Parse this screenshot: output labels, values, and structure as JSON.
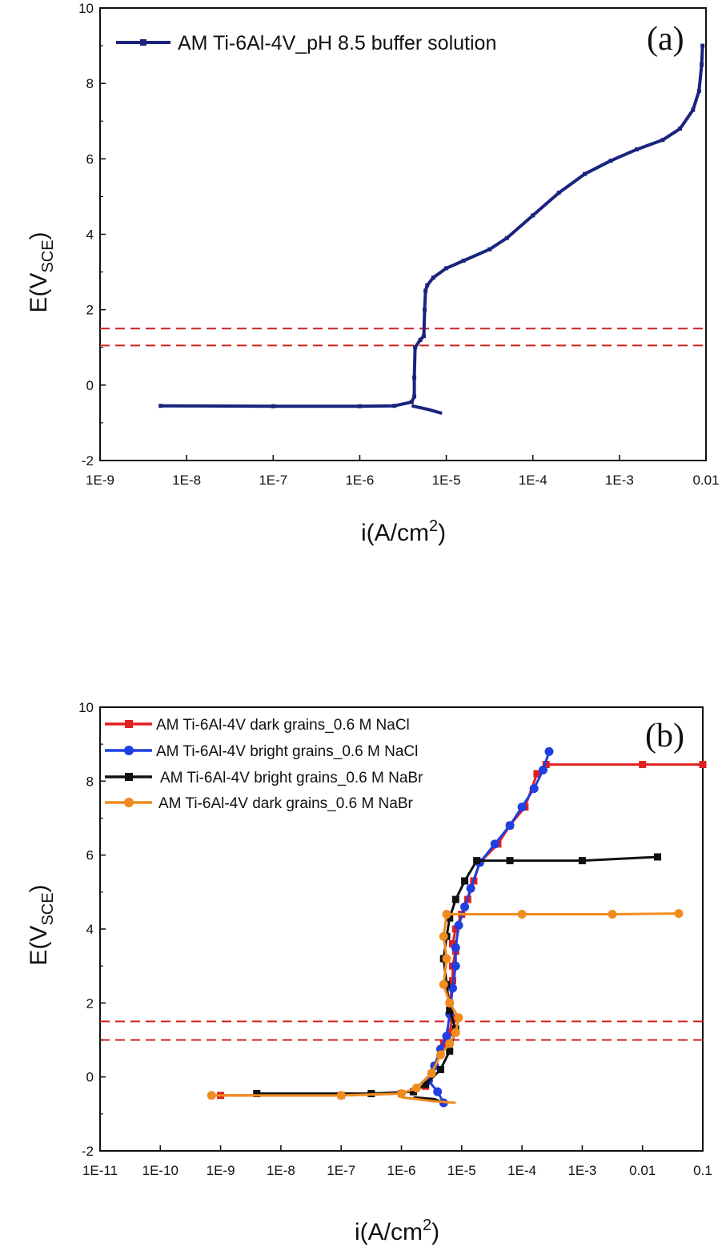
{
  "chart_data": [
    {
      "id": "a",
      "type": "line",
      "panel_label": "(a)",
      "xscale": "log",
      "xlim": [
        -9,
        -2
      ],
      "ylim": [
        -2,
        10
      ],
      "x_ticks": [
        {
          "exp": -9,
          "label": "1E-9"
        },
        {
          "exp": -8,
          "label": "1E-8"
        },
        {
          "exp": -7,
          "label": "1E-7"
        },
        {
          "exp": -6,
          "label": "1E-6"
        },
        {
          "exp": -5,
          "label": "1E-5"
        },
        {
          "exp": -4,
          "label": "1E-4"
        },
        {
          "exp": -3,
          "label": "1E-3"
        },
        {
          "exp": -2,
          "label": "0.01"
        }
      ],
      "y_ticks": [
        -2,
        0,
        2,
        4,
        6,
        8,
        10
      ],
      "xlabel": {
        "main": "i(A/cm",
        "sup": "2",
        "end": ")"
      },
      "ylabel": {
        "main": "E(V",
        "sub": "SCE",
        "end": ")"
      },
      "hlines": [
        1.5,
        1.05
      ],
      "hline_color": "#cc2222",
      "series": [
        {
          "name": "AM Ti-6Al-4V_pH 8.5 buffer solution",
          "color": "#1a237e",
          "marker": "square",
          "points": [
            [
              -8.3,
              -0.55
            ],
            [
              -7,
              -0.56
            ],
            [
              -6,
              -0.56
            ],
            [
              -5.6,
              -0.55
            ],
            [
              -5.4,
              -0.45
            ],
            [
              -5.37,
              -0.3
            ],
            [
              -5.37,
              0.2
            ],
            [
              -5.36,
              1.0
            ],
            [
              -5.3,
              1.2
            ],
            [
              -5.26,
              1.3
            ],
            [
              -5.25,
              2.0
            ],
            [
              -5.24,
              2.5
            ],
            [
              -5.22,
              2.65
            ],
            [
              -5.15,
              2.85
            ],
            [
              -5.0,
              3.1
            ],
            [
              -4.8,
              3.3
            ],
            [
              -4.5,
              3.6
            ],
            [
              -4.3,
              3.9
            ],
            [
              -4.0,
              4.5
            ],
            [
              -3.7,
              5.1
            ],
            [
              -3.4,
              5.6
            ],
            [
              -3.1,
              5.95
            ],
            [
              -2.8,
              6.25
            ],
            [
              -2.5,
              6.5
            ],
            [
              -2.3,
              6.8
            ],
            [
              -2.15,
              7.3
            ],
            [
              -2.08,
              7.8
            ],
            [
              -2.05,
              8.5
            ],
            [
              -2.04,
              9.0
            ]
          ],
          "cathodic_branch": [
            [
              -5.4,
              -0.55
            ],
            [
              -5.2,
              -0.65
            ],
            [
              -5.05,
              -0.75
            ]
          ]
        }
      ]
    },
    {
      "id": "b",
      "type": "line",
      "panel_label": "(b)",
      "xscale": "log",
      "xlim": [
        -11,
        -1
      ],
      "ylim": [
        -2,
        10
      ],
      "x_ticks": [
        {
          "exp": -11,
          "label": "1E-11"
        },
        {
          "exp": -10,
          "label": "1E-10"
        },
        {
          "exp": -9,
          "label": "1E-9"
        },
        {
          "exp": -8,
          "label": "1E-8"
        },
        {
          "exp": -7,
          "label": "1E-7"
        },
        {
          "exp": -6,
          "label": "1E-6"
        },
        {
          "exp": -5,
          "label": "1E-5"
        },
        {
          "exp": -4,
          "label": "1E-4"
        },
        {
          "exp": -3,
          "label": "1E-3"
        },
        {
          "exp": -2,
          "label": "0.01"
        },
        {
          "exp": -1,
          "label": "0.1"
        }
      ],
      "y_ticks": [
        -2,
        0,
        2,
        4,
        6,
        8,
        10
      ],
      "xlabel": {
        "main": "i(A/cm",
        "sup": "2",
        "end": ")"
      },
      "ylabel": {
        "main": "E(V",
        "sub": "SCE",
        "end": ")"
      },
      "hlines": [
        1.5,
        1.0
      ],
      "hline_color": "#cc2222",
      "series": [
        {
          "name": "AM Ti-6Al-4V dark grains_0.6 M NaCl",
          "color": "#e02020",
          "marker": "square",
          "points": [
            [
              -9,
              -0.5
            ],
            [
              -7,
              -0.5
            ],
            [
              -6,
              -0.45
            ],
            [
              -5.6,
              -0.25
            ],
            [
              -5.45,
              0.3
            ],
            [
              -5.3,
              0.9
            ],
            [
              -5.2,
              1.2
            ],
            [
              -5.15,
              1.6
            ],
            [
              -5.2,
              2.0
            ],
            [
              -5.15,
              2.6
            ],
            [
              -5.15,
              3.0
            ],
            [
              -5.1,
              3.4
            ],
            [
              -5.15,
              3.6
            ],
            [
              -5.1,
              4.0
            ],
            [
              -5.0,
              4.4
            ],
            [
              -4.9,
              4.8
            ],
            [
              -4.8,
              5.3
            ],
            [
              -4.7,
              5.8
            ],
            [
              -4.4,
              6.3
            ],
            [
              -4.2,
              6.8
            ],
            [
              -3.95,
              7.3
            ],
            [
              -3.75,
              8.2
            ],
            [
              -3.6,
              8.45
            ],
            [
              -2,
              8.45
            ],
            [
              -1,
              8.45
            ]
          ]
        },
        {
          "name": "AM Ti-6Al-4V bright grains_0.6 M NaCl",
          "color": "#1f3fe0",
          "marker": "circle",
          "points": [
            [
              -5.3,
              -0.7
            ],
            [
              -5.4,
              -0.4
            ],
            [
              -5.55,
              -0.1
            ],
            [
              -5.45,
              0.3
            ],
            [
              -5.35,
              0.75
            ],
            [
              -5.25,
              1.1
            ],
            [
              -5.2,
              1.7
            ],
            [
              -5.15,
              2.4
            ],
            [
              -5.1,
              3.0
            ],
            [
              -5.1,
              3.5
            ],
            [
              -5.05,
              4.1
            ],
            [
              -4.95,
              4.6
            ],
            [
              -4.85,
              5.1
            ],
            [
              -4.7,
              5.8
            ],
            [
              -4.45,
              6.3
            ],
            [
              -4.2,
              6.8
            ],
            [
              -4.0,
              7.3
            ],
            [
              -3.8,
              7.8
            ],
            [
              -3.65,
              8.3
            ],
            [
              -3.55,
              8.8
            ]
          ]
        },
        {
          "name": "AM Ti-6Al-4V bright grains_0.6 M NaBr",
          "color": "#111111",
          "marker": "square",
          "points": [
            [
              -8.4,
              -0.45
            ],
            [
              -6.5,
              -0.45
            ],
            [
              -5.8,
              -0.4
            ],
            [
              -5.6,
              -0.2
            ],
            [
              -5.35,
              0.2
            ],
            [
              -5.2,
              0.7
            ],
            [
              -5.1,
              1.3
            ],
            [
              -5.2,
              1.8
            ],
            [
              -5.25,
              2.5
            ],
            [
              -5.3,
              3.2
            ],
            [
              -5.25,
              3.8
            ],
            [
              -5.2,
              4.3
            ],
            [
              -5.1,
              4.8
            ],
            [
              -4.95,
              5.3
            ],
            [
              -4.75,
              5.85
            ],
            [
              -4.2,
              5.85
            ],
            [
              -3,
              5.85
            ],
            [
              -1.75,
              5.95
            ]
          ],
          "cathodic_branch": [
            [
              -5.8,
              -0.55
            ],
            [
              -5.45,
              -0.6
            ],
            [
              -5.3,
              -0.7
            ]
          ]
        },
        {
          "name": "AM Ti-6Al-4V dark grains_0.6 M NaBr",
          "color": "#f08c1e",
          "marker": "circle",
          "points": [
            [
              -9.15,
              -0.5
            ],
            [
              -7,
              -0.5
            ],
            [
              -6,
              -0.45
            ],
            [
              -5.75,
              -0.3
            ],
            [
              -5.5,
              0.1
            ],
            [
              -5.35,
              0.6
            ],
            [
              -5.2,
              0.9
            ],
            [
              -5.1,
              1.2
            ],
            [
              -5.05,
              1.6
            ],
            [
              -5.2,
              2.0
            ],
            [
              -5.3,
              2.5
            ],
            [
              -5.25,
              3.2
            ],
            [
              -5.3,
              3.8
            ],
            [
              -5.25,
              4.4
            ],
            [
              -4.0,
              4.4
            ],
            [
              -2.5,
              4.4
            ],
            [
              -1.4,
              4.42
            ]
          ],
          "cathodic_branch": [
            [
              -6,
              -0.55
            ],
            [
              -5.5,
              -0.65
            ],
            [
              -5.1,
              -0.7
            ]
          ]
        }
      ]
    }
  ]
}
